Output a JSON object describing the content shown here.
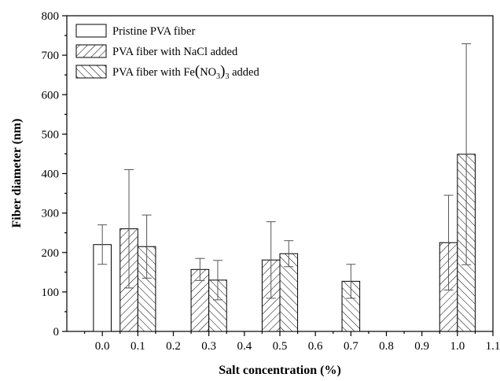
{
  "chart_data": {
    "type": "bar",
    "xlabel": "Salt concentration (%)",
    "ylabel": "Fiber diameter (nm)",
    "xlim": [
      -0.1,
      1.1
    ],
    "ylim": [
      0,
      800
    ],
    "x_ticks": [
      "0.0",
      "0.1",
      "0.2",
      "0.3",
      "0.4",
      "0.5",
      "0.6",
      "0.7",
      "0.8",
      "0.9",
      "1.0",
      "1.1"
    ],
    "y_ticks": [
      "0",
      "100",
      "200",
      "300",
      "400",
      "500",
      "600",
      "700",
      "800"
    ],
    "grid": false,
    "legend_position": "top-left",
    "series": [
      {
        "name": "Pristine PVA fiber",
        "fill": "none",
        "points": [
          {
            "x": 0.0,
            "y": 220,
            "err": 50
          }
        ]
      },
      {
        "name": "PVA fiber with NaCl added",
        "fill": "hatch-forward",
        "points": [
          {
            "x": 0.1,
            "y": 260,
            "err": 150
          },
          {
            "x": 0.3,
            "y": 157,
            "err": 28
          },
          {
            "x": 0.5,
            "y": 181,
            "err": 97
          },
          {
            "x": 1.0,
            "y": 225,
            "err": 120
          }
        ]
      },
      {
        "name": "PVA fiber with Fe(NO3)3 added",
        "name_parts": {
          "prefix": "PVA fiber with Fe",
          "paren_open": "(",
          "no": "NO",
          "sub3": "3",
          "paren_close": ")",
          "sub3b": "3",
          "suffix": " added"
        },
        "fill": "hatch-back",
        "points": [
          {
            "x": 0.1,
            "y": 215,
            "err": 80
          },
          {
            "x": 0.3,
            "y": 130,
            "err": 50
          },
          {
            "x": 0.5,
            "y": 197,
            "err": 33
          },
          {
            "x": 0.7,
            "y": 127,
            "err": 43
          },
          {
            "x": 1.0,
            "y": 449,
            "err": 280
          }
        ]
      }
    ]
  }
}
